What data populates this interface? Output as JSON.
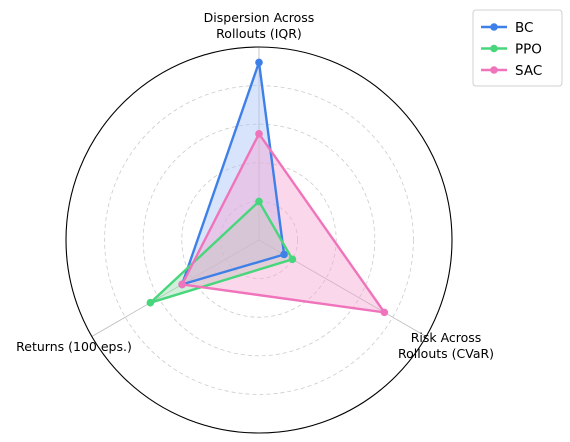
{
  "chart_data": {
    "type": "radar",
    "title": "",
    "axes": [
      {
        "key": "iqr",
        "label_lines": [
          "Dispersion Across",
          "Rollouts (IQR)"
        ]
      },
      {
        "key": "cvar",
        "label_lines": [
          "Risk Across",
          "Rollouts (CVaR)"
        ]
      },
      {
        "key": "ret",
        "label_lines": [
          "Returns (100 eps.)"
        ]
      }
    ],
    "rlim": [
      0,
      1.0
    ],
    "grid_levels": [
      0.2,
      0.4,
      0.6,
      0.8
    ],
    "grid": true,
    "legend_position": "top-right",
    "series": [
      {
        "name": "BC",
        "color": "#3f80e8",
        "fill": "#a9c4f7",
        "values": [
          0.92,
          0.15,
          0.46
        ]
      },
      {
        "name": "PPO",
        "color": "#48d67c",
        "fill": "#9bdcb0",
        "values": [
          0.2,
          0.2,
          0.65
        ]
      },
      {
        "name": "SAC",
        "color": "#ef74bb",
        "fill": "#f7a6d2",
        "values": [
          0.55,
          0.75,
          0.46
        ]
      }
    ]
  }
}
